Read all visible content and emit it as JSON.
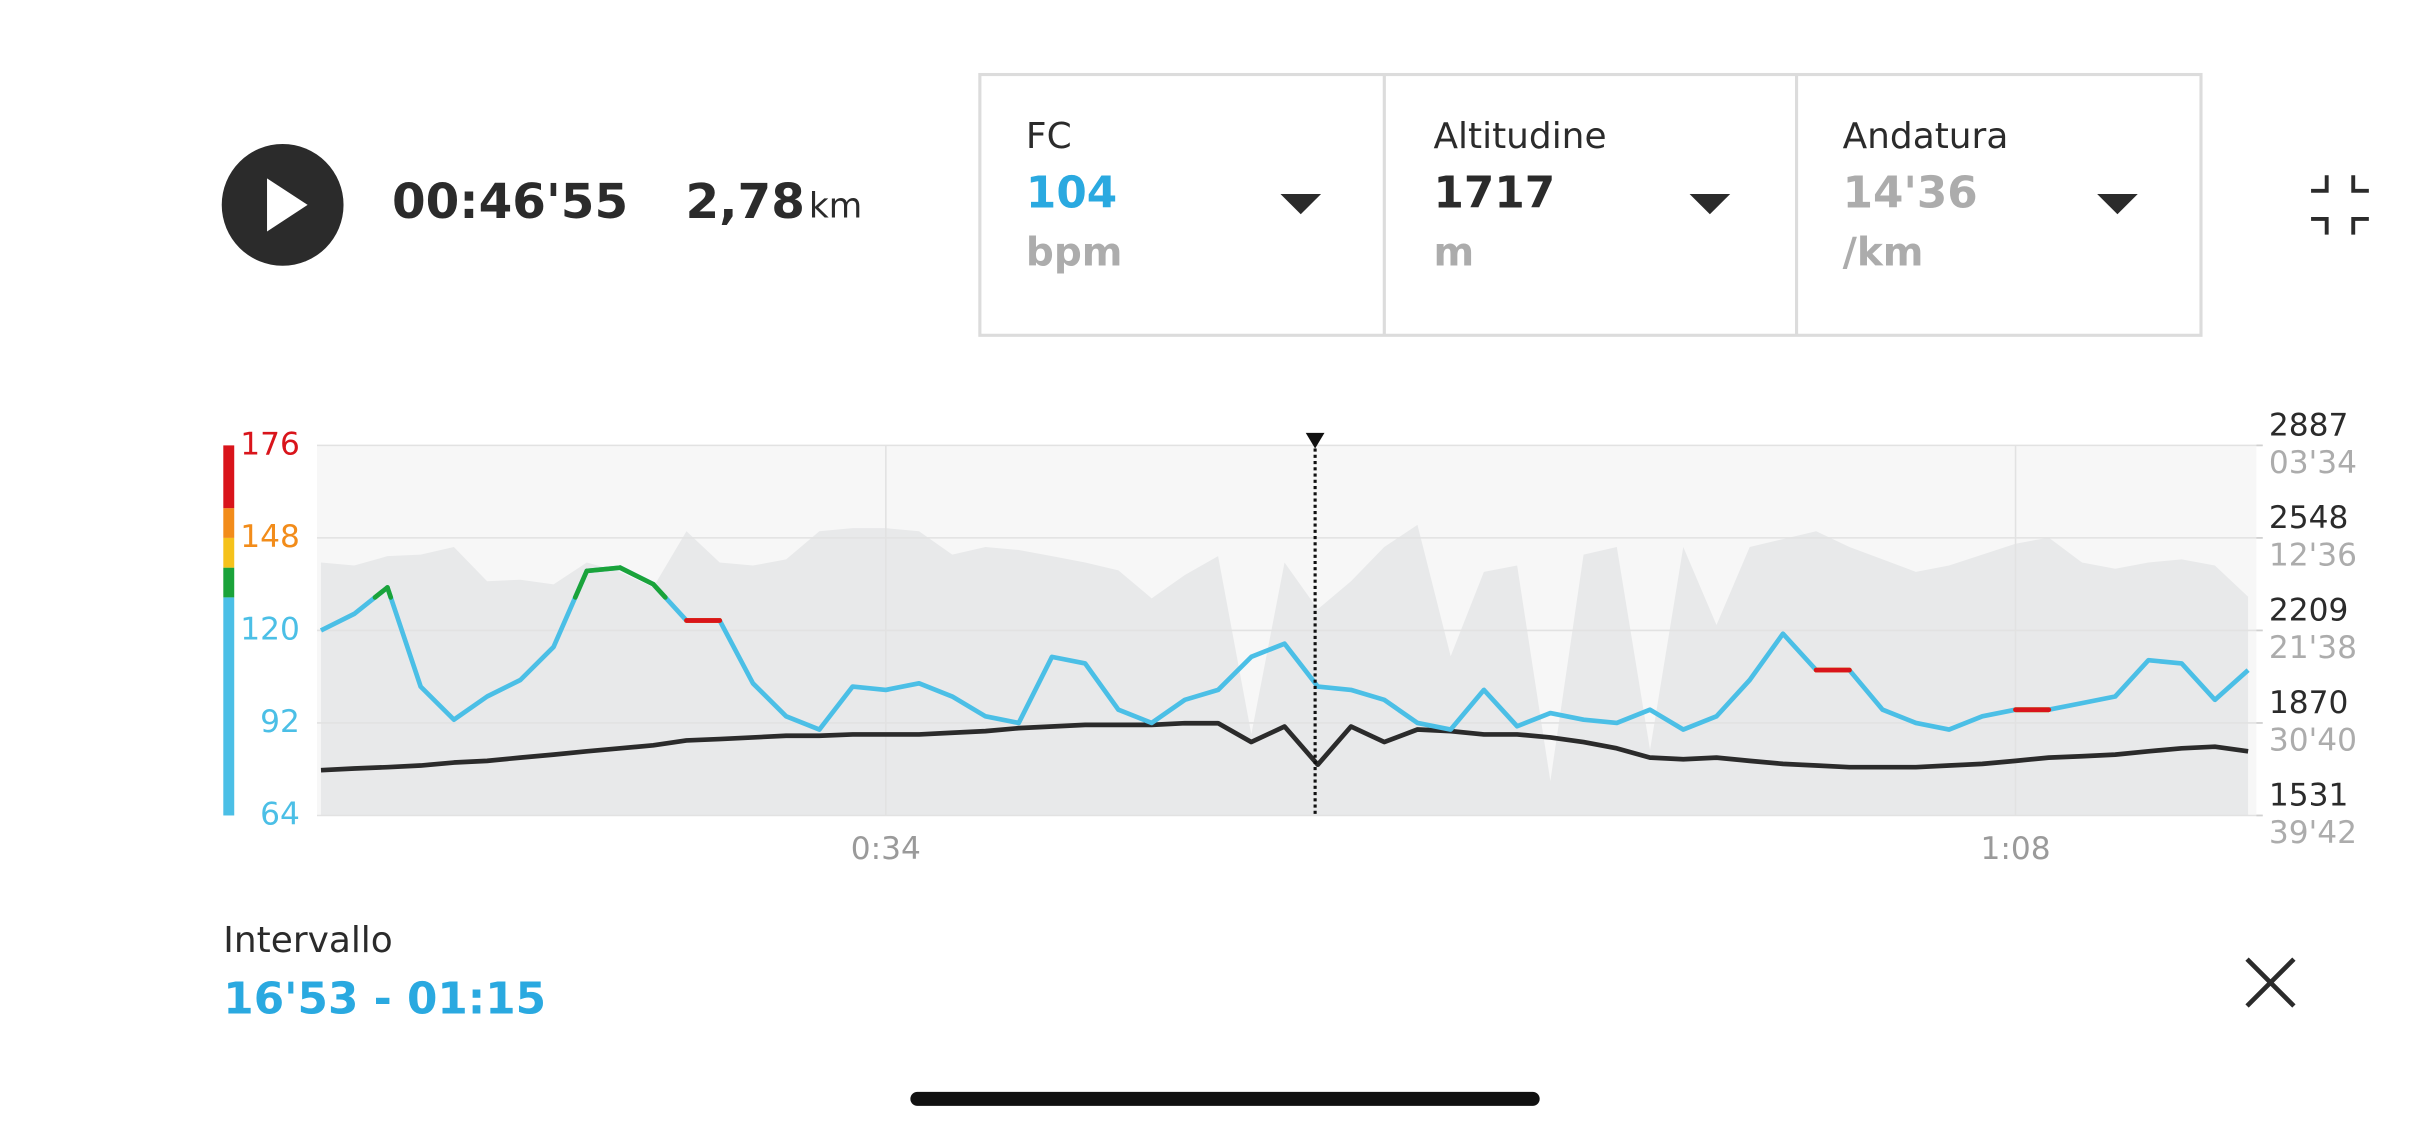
{
  "header": {
    "elapsed": "00:46'55",
    "distance": "2,78",
    "distance_unit": "km"
  },
  "metrics": [
    {
      "label": "FC",
      "value": "104",
      "unit": "bpm",
      "color": "#2aa9e0"
    },
    {
      "label": "Altitudine",
      "value": "1717",
      "unit": "m",
      "color": "#2b2b2b"
    },
    {
      "label": "Andatura",
      "value": "14'36",
      "unit": "/km",
      "color": "#acacac"
    }
  ],
  "interval": {
    "label": "Intervallo",
    "value": "16'53 - 01:15"
  },
  "chart_data": {
    "type": "line",
    "x": [
      17,
      18,
      19,
      20,
      21,
      22,
      23,
      24,
      25,
      26,
      27,
      28,
      29,
      30,
      31,
      32,
      33,
      34,
      35,
      36,
      37,
      38,
      39,
      40,
      41,
      42,
      43,
      44,
      45,
      46,
      47,
      48,
      49,
      50,
      51,
      52,
      53,
      54,
      55,
      56,
      57,
      58,
      59,
      60,
      61,
      62,
      63,
      64,
      65,
      66,
      67,
      68,
      69,
      70,
      71,
      72,
      73,
      74,
      75
    ],
    "xlim": [
      16.88,
      75.25
    ],
    "xticks": [
      {
        "value": 34,
        "label": "0:34"
      },
      {
        "value": 68,
        "label": "1:08"
      }
    ],
    "ylim": [
      64,
      176
    ],
    "yticks": [
      64,
      92,
      120,
      148,
      176
    ],
    "y2lim": [
      1531,
      2887
    ],
    "y2ticks": [
      1531,
      1870,
      2209,
      2548,
      2887
    ],
    "y3lim": [
      2382,
      214
    ],
    "y3ticks": [
      {
        "value": 2382,
        "label": "39'42"
      },
      {
        "value": 1840,
        "label": "30'40"
      },
      {
        "value": 1298,
        "label": "21'38"
      },
      {
        "value": 756,
        "label": "12'36"
      },
      {
        "value": 214,
        "label": "03'34"
      }
    ],
    "zones": [
      {
        "from": 64,
        "to": 130,
        "color": "#4bbfe6"
      },
      {
        "from": 130,
        "to": 139,
        "color": "#1aa33a"
      },
      {
        "from": 139,
        "to": 148,
        "color": "#f5c21b"
      },
      {
        "from": 148,
        "to": 157,
        "color": "#f28c1a"
      },
      {
        "from": 157,
        "to": 176,
        "color": "#d9141b"
      }
    ],
    "cursor": 46.92,
    "series": [
      {
        "kind": "area",
        "axis": "y3",
        "color": "#e8e9ea",
        "values": [
          900,
          918,
          863,
          854,
          809,
          1010,
          1001,
          1028,
          900,
          955,
          1046,
          717,
          900,
          918,
          882,
          717,
          699,
          699,
          717,
          854,
          809,
          827,
          863,
          900,
          946,
          1110,
          973,
          863,
          1906,
          900,
          1174,
          1010,
          809,
          680,
          1449,
          955,
          918,
          2181,
          854,
          809,
          1998,
          809,
          1266,
          809,
          763,
          717,
          809,
          882,
          955,
          918,
          854,
          790,
          754,
          900,
          937,
          900,
          882,
          918,
          1101
        ]
      },
      {
        "kind": "line",
        "axis": "y2",
        "color": "#2b2b2b",
        "values": [
          1697,
          1703,
          1708,
          1714,
          1725,
          1731,
          1743,
          1754,
          1766,
          1777,
          1788,
          1806,
          1811,
          1817,
          1823,
          1823,
          1828,
          1828,
          1828,
          1834,
          1840,
          1851,
          1857,
          1863,
          1863,
          1863,
          1869,
          1869,
          1800,
          1857,
          1717,
          1857,
          1800,
          1846,
          1840,
          1828,
          1828,
          1817,
          1800,
          1777,
          1743,
          1737,
          1743,
          1731,
          1720,
          1714,
          1708,
          1708,
          1708,
          1714,
          1720,
          1731,
          1743,
          1748,
          1754,
          1766,
          1777,
          1783,
          1766
        ]
      },
      {
        "kind": "line",
        "axis": "y",
        "color": "#4bbfe6",
        "zoned": true,
        "values": [
          120,
          125,
          133,
          103,
          93,
          100,
          105,
          115,
          138,
          139,
          134,
          123,
          123,
          104,
          94,
          90,
          103,
          102,
          104,
          100,
          94,
          92,
          112,
          110,
          96,
          92,
          99,
          102,
          112,
          116,
          103,
          102,
          99,
          92,
          90,
          102,
          91,
          95,
          93,
          92,
          96,
          90,
          94,
          105,
          119,
          108,
          108,
          96,
          92,
          90,
          94,
          96,
          96,
          98,
          100,
          111,
          110,
          99,
          108
        ]
      }
    ]
  }
}
